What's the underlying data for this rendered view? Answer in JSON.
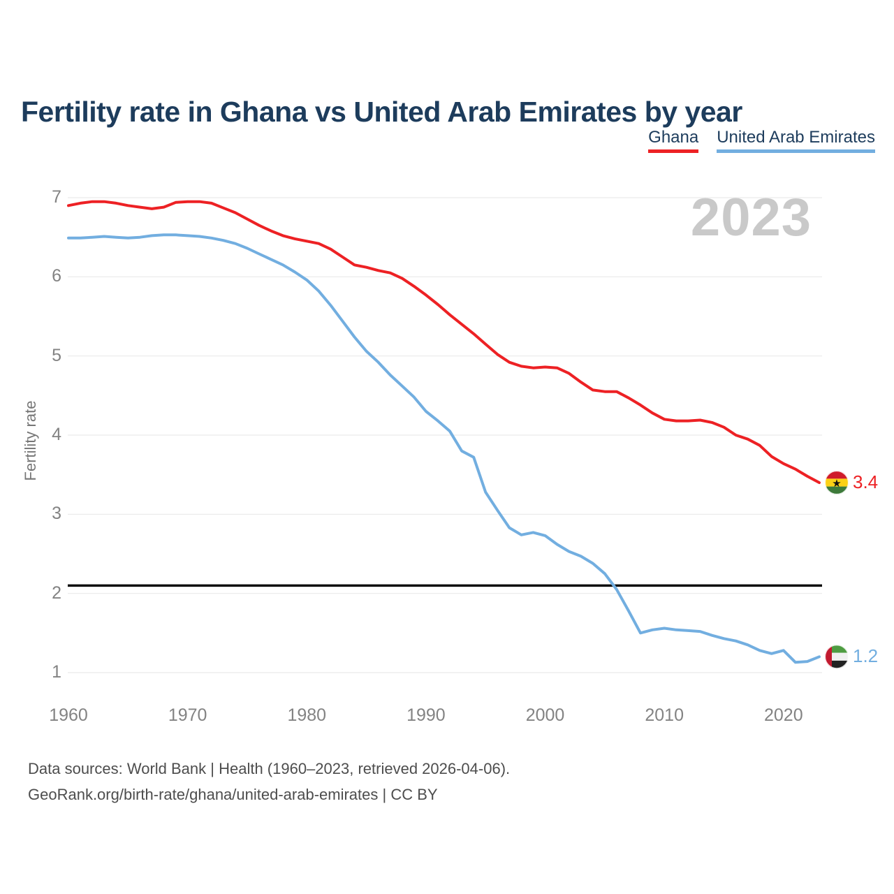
{
  "page": {
    "title": "Fertility rate in Ghana vs United Arab Emirates by year",
    "watermark_year": "2023",
    "footer_line1": "Data sources: World Bank | Health (1960–2023, retrieved 2026-04-06).",
    "footer_line2": "GeoRank.org/birth-rate/ghana/united-arab-emirates | CC BY"
  },
  "legend": {
    "items": [
      {
        "label": "Ghana",
        "color": "#ed2124"
      },
      {
        "label": "United Arab Emirates",
        "color": "#72aee0"
      }
    ]
  },
  "colors": {
    "title": "#1d3c5c",
    "ghana": "#ed2124",
    "uae": "#72aee0",
    "gridline": "#eaeaea",
    "reference_line": "#0a0a0a",
    "tick_text": "#838383",
    "watermark": "#c9c9c9",
    "footer_text": "#4d4d4d"
  },
  "chart_data": {
    "type": "line",
    "title": "Fertility rate in Ghana vs United Arab Emirates by year",
    "xlabel": "",
    "ylabel": "Fertility rate",
    "xlim": [
      1960,
      2023
    ],
    "ylim": [
      1,
      7
    ],
    "x_ticks": [
      1960,
      1970,
      1980,
      1990,
      2000,
      2010,
      2020
    ],
    "y_ticks": [
      7,
      6,
      5,
      4,
      3,
      2,
      1
    ],
    "grid": "horizontal",
    "legend_position": "top-right",
    "watermark": "2023",
    "reference_line": {
      "value": 2.1,
      "color": "#0a0a0a"
    },
    "x": [
      1960,
      1961,
      1962,
      1963,
      1964,
      1965,
      1966,
      1967,
      1968,
      1969,
      1970,
      1971,
      1972,
      1973,
      1974,
      1975,
      1976,
      1977,
      1978,
      1979,
      1980,
      1981,
      1982,
      1983,
      1984,
      1985,
      1986,
      1987,
      1988,
      1989,
      1990,
      1991,
      1992,
      1993,
      1994,
      1995,
      1996,
      1997,
      1998,
      1999,
      2000,
      2001,
      2002,
      2003,
      2004,
      2005,
      2006,
      2007,
      2008,
      2009,
      2010,
      2011,
      2012,
      2013,
      2014,
      2015,
      2016,
      2017,
      2018,
      2019,
      2020,
      2021,
      2022,
      2023
    ],
    "series": [
      {
        "name": "Ghana",
        "color": "#ed2124",
        "end_label": "3.4",
        "flag": "ghana",
        "values": [
          6.9,
          6.93,
          6.95,
          6.95,
          6.93,
          6.9,
          6.88,
          6.86,
          6.88,
          6.94,
          6.95,
          6.95,
          6.93,
          6.87,
          6.81,
          6.73,
          6.65,
          6.58,
          6.52,
          6.48,
          6.45,
          6.42,
          6.35,
          6.25,
          6.15,
          6.12,
          6.08,
          6.05,
          5.98,
          5.88,
          5.77,
          5.65,
          5.52,
          5.4,
          5.28,
          5.15,
          5.02,
          4.92,
          4.87,
          4.85,
          4.86,
          4.85,
          4.78,
          4.67,
          4.57,
          4.55,
          4.55,
          4.47,
          4.38,
          4.28,
          4.2,
          4.18,
          4.18,
          4.19,
          4.16,
          4.1,
          4.0,
          3.95,
          3.87,
          3.73,
          3.64,
          3.57,
          3.48,
          3.4
        ]
      },
      {
        "name": "United Arab Emirates",
        "color": "#72aee0",
        "end_label": "1.2",
        "flag": "uae",
        "values": [
          6.49,
          6.49,
          6.5,
          6.51,
          6.5,
          6.49,
          6.5,
          6.52,
          6.53,
          6.53,
          6.52,
          6.51,
          6.49,
          6.46,
          6.42,
          6.36,
          6.29,
          6.22,
          6.15,
          6.06,
          5.96,
          5.82,
          5.64,
          5.44,
          5.24,
          5.06,
          4.92,
          4.76,
          4.62,
          4.48,
          4.3,
          4.18,
          4.05,
          3.8,
          3.72,
          3.28,
          3.05,
          2.83,
          2.74,
          2.77,
          2.73,
          2.62,
          2.53,
          2.47,
          2.38,
          2.25,
          2.05,
          1.78,
          1.5,
          1.54,
          1.56,
          1.54,
          1.53,
          1.52,
          1.47,
          1.43,
          1.4,
          1.35,
          1.28,
          1.24,
          1.28,
          1.13,
          1.14,
          1.2
        ]
      }
    ],
    "flag_colors": {
      "ghana": {
        "stripes": [
          "#cf1b2b",
          "#fcd116",
          "#3d7a3a"
        ],
        "star": "#111111"
      },
      "uae": {
        "hoist_red": "#c21a2f",
        "green": "#4e9c41",
        "white": "#f0f0f0",
        "black": "#222222"
      }
    }
  }
}
